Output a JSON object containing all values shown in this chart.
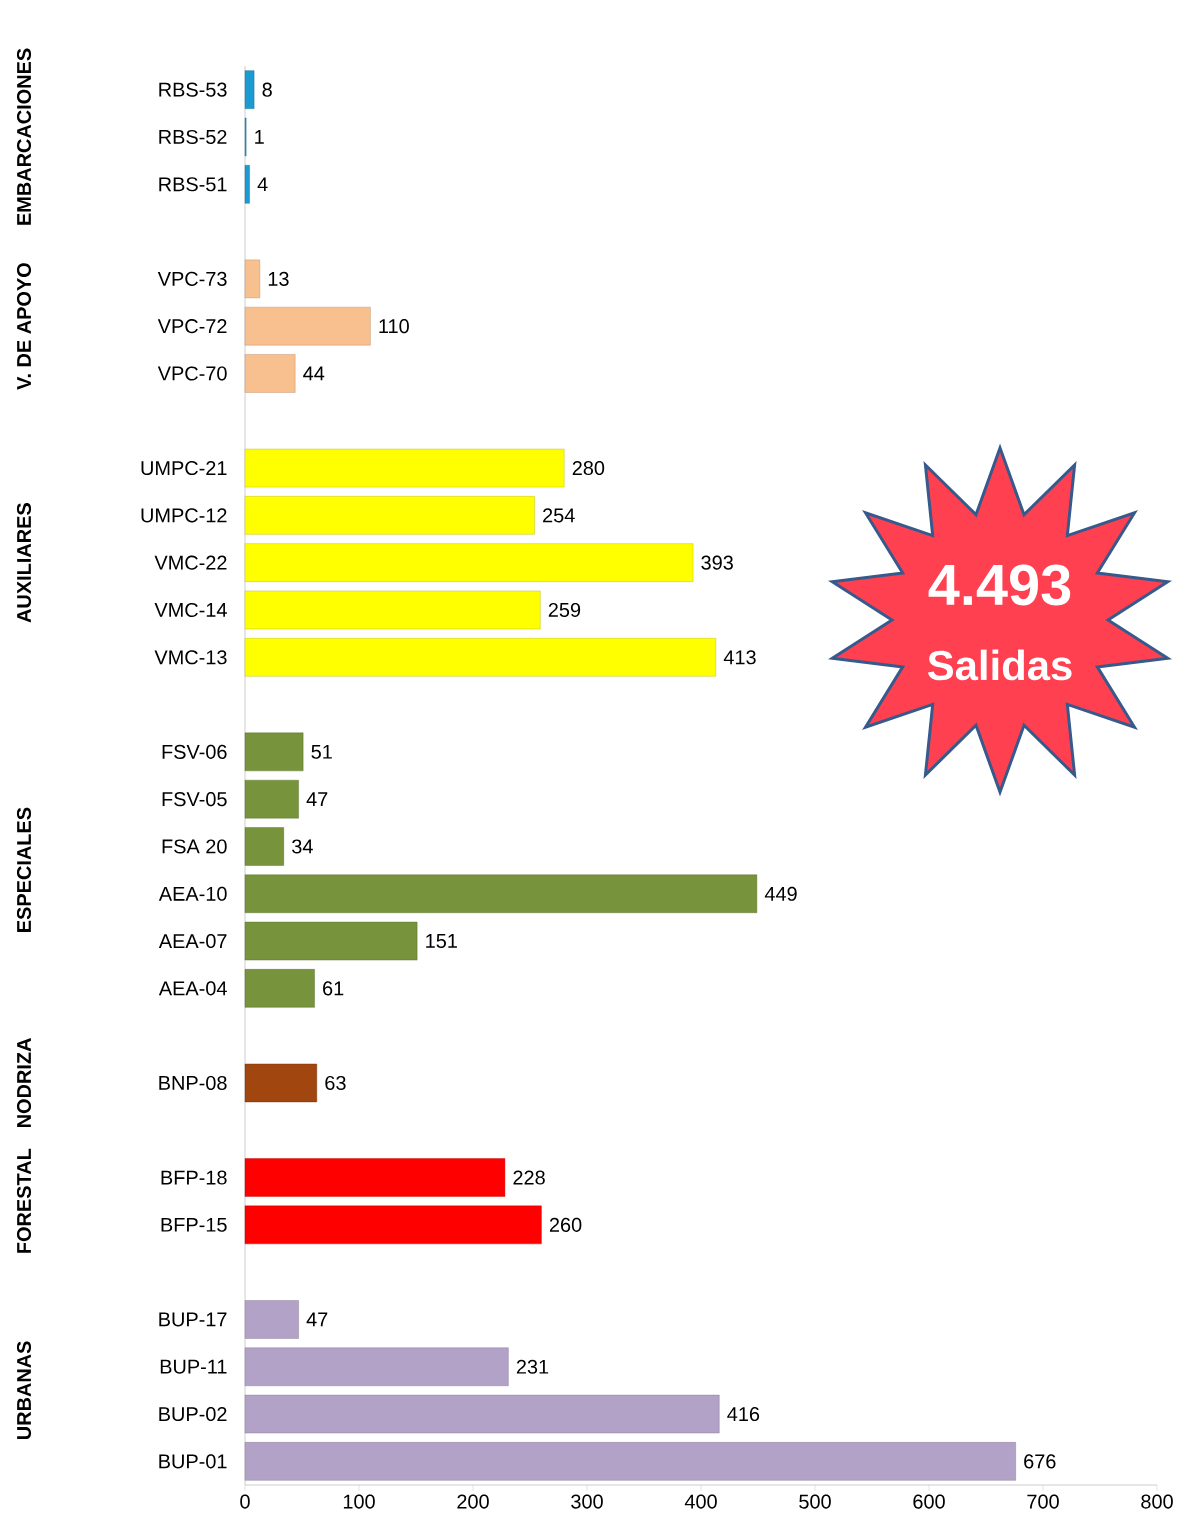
{
  "chart_data": {
    "type": "bar",
    "orientation": "horizontal",
    "categories": [
      "RBS-53",
      "RBS-52",
      "RBS-51",
      null,
      "VPC-73",
      "VPC-72",
      "VPC-70",
      null,
      "UMPC-21",
      "UMPC-12",
      "VMC-22",
      "VMC-14",
      "VMC-13",
      null,
      "FSV-06",
      "FSV-05",
      "FSA 20",
      "AEA-10",
      "AEA-07",
      "AEA-04",
      null,
      "BNP-08",
      null,
      "BFP-18",
      "BFP-15",
      null,
      "BUP-17",
      "BUP-11",
      "BUP-02",
      "BUP-01"
    ],
    "values": [
      8,
      1,
      4,
      null,
      13,
      110,
      44,
      null,
      280,
      254,
      393,
      259,
      413,
      null,
      51,
      47,
      34,
      449,
      151,
      61,
      null,
      63,
      null,
      228,
      260,
      null,
      47,
      231,
      416,
      676
    ],
    "colors": [
      "#1b9bd1",
      "#1b9bd1",
      "#1b9bd1",
      null,
      "#f9c08f",
      "#f9c08f",
      "#f9c08f",
      null,
      "#ffff00",
      "#ffff00",
      "#ffff00",
      "#ffff00",
      "#ffff00",
      null,
      "#77933c",
      "#77933c",
      "#77933c",
      "#77933c",
      "#77933c",
      "#77933c",
      null,
      "#a0460e",
      null,
      "#ff0000",
      "#ff0000",
      null,
      "#b3a2c7",
      "#b3a2c7",
      "#b3a2c7",
      "#b3a2c7"
    ],
    "xlim": [
      0,
      800
    ],
    "xticks": [
      0,
      100,
      200,
      300,
      400,
      500,
      600,
      700,
      800
    ],
    "data_labels": true,
    "grid": false,
    "annotations": [
      "EMBARCACIONES",
      "V. DE APOYO",
      "AUXILIARES",
      "ESPECIALES",
      "NODRIZA",
      "FORESTAL",
      "URBANAS",
      "4.493",
      "Salidas"
    ]
  }
}
